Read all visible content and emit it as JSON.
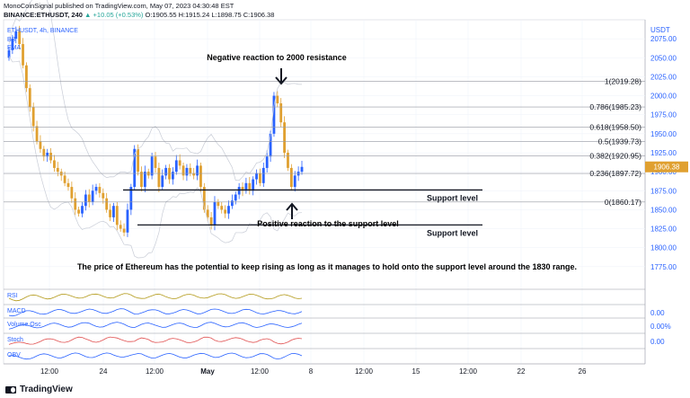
{
  "header": {
    "publisher_line": "MonoCoinSignal published on TradingView.com, May 07, 2023 04:30:48 EST",
    "symbol": "BINANCE:ETHUSDT, 240",
    "change": "▲ +10.05 (+0.53%)",
    "ohlc": "O:1905.55 H:1915.24 L:1898.75 C:1906.38",
    "legend_symbol": "ETHUSDT, 4h, BINANCE",
    "legend_items": [
      "BB",
      "EMA"
    ]
  },
  "colors": {
    "up": "#2962ff",
    "down": "#e0a030",
    "bg": "#ffffff",
    "axis_text": "#2962ff",
    "price_tag": "#e0a030",
    "bb": "#c8ccd6"
  },
  "chart_data": {
    "type": "candlestick",
    "currency": "USDT",
    "ylim": [
      1750,
      2100
    ],
    "y_ticks": [
      1775,
      1800,
      1825,
      1850,
      1875,
      1900,
      1925,
      1950,
      1975,
      2000,
      2025,
      2050,
      2075
    ],
    "x_ticks": [
      "12:00",
      "24",
      "12:00",
      "May",
      "12:00",
      "8",
      "12:00",
      "15",
      "12:00",
      "22",
      "26"
    ],
    "last_price": 1906.38,
    "closes": [
      2060,
      2075,
      2085,
      2068,
      2040,
      2010,
      1985,
      1960,
      1940,
      1930,
      1920,
      1925,
      1915,
      1905,
      1900,
      1895,
      1885,
      1880,
      1865,
      1850,
      1845,
      1855,
      1870,
      1860,
      1875,
      1880,
      1872,
      1865,
      1850,
      1840,
      1855,
      1830,
      1825,
      1820,
      1850,
      1880,
      1930,
      1900,
      1880,
      1900,
      1895,
      1920,
      1905,
      1880,
      1895,
      1905,
      1890,
      1900,
      1915,
      1908,
      1895,
      1905,
      1898,
      1895,
      1908,
      1880,
      1850,
      1840,
      1830,
      1860,
      1855,
      1850,
      1845,
      1855,
      1862,
      1870,
      1880,
      1875,
      1885,
      1875,
      1890,
      1898,
      1885,
      1905,
      1920,
      1950,
      2000,
      1990,
      1965,
      1925,
      1905,
      1880,
      1895,
      1900,
      1906.38
    ],
    "fib_levels": [
      {
        "ratio": "1",
        "value": 2019.28,
        "label": "1(2019.28)"
      },
      {
        "ratio": "0.786",
        "value": 1985.23,
        "label": "0.786(1985.23)"
      },
      {
        "ratio": "0.618",
        "value": 1958.5,
        "label": "0.618(1958.50)"
      },
      {
        "ratio": "0.5",
        "value": 1939.73,
        "label": "0.5(1939.73)"
      },
      {
        "ratio": "0.382",
        "value": 1920.95,
        "label": "0.382(1920.95)"
      },
      {
        "ratio": "0.236",
        "value": 1897.72,
        "label": "0.236(1897.72)"
      },
      {
        "ratio": "0",
        "value": 1860.17,
        "label": "0(1860.17)"
      }
    ],
    "support_levels": [
      {
        "value": 1876,
        "label": "Support level"
      },
      {
        "value": 1830,
        "label": "Support level"
      }
    ],
    "annotations": {
      "resistance": "Negative reaction to 2000 resistance",
      "support": "Positive reaction to the support level",
      "summary": "The price of Ethereum has the potential to keep rising as long as it manages to hold onto the support level around the 1830 range."
    },
    "indicators": [
      {
        "name": "RSI",
        "value": ""
      },
      {
        "name": "MACD",
        "value": "0.00"
      },
      {
        "name": "Volume Osc",
        "value": "0.00%"
      },
      {
        "name": "Stoch",
        "value": "0.00"
      },
      {
        "name": "OBV",
        "value": ""
      }
    ]
  },
  "footer": {
    "brand": "TradingView"
  }
}
